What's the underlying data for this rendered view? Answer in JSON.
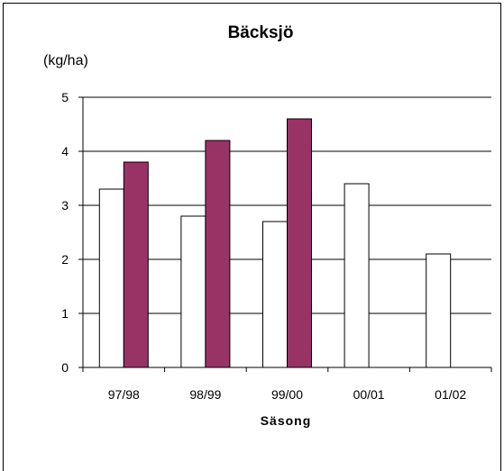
{
  "chart_data": {
    "type": "bar",
    "title": "Bäcksjö",
    "unit_label": "(kg/ha)",
    "xlabel": "Säsong",
    "ylabel": "",
    "ylim": [
      0,
      5
    ],
    "yticks": [
      "0",
      "1",
      "2",
      "3",
      "4",
      "5"
    ],
    "categories": [
      "97/98",
      "98/99",
      "99/00",
      "00/01",
      "01/02"
    ],
    "series": [
      {
        "values": [
          3.3,
          2.8,
          2.7,
          3.4,
          2.1
        ],
        "color": "#ffffff"
      },
      {
        "values": [
          3.8,
          4.2,
          4.6,
          null,
          null
        ],
        "color": "#993366"
      }
    ],
    "grid": true,
    "legend": "none"
  }
}
